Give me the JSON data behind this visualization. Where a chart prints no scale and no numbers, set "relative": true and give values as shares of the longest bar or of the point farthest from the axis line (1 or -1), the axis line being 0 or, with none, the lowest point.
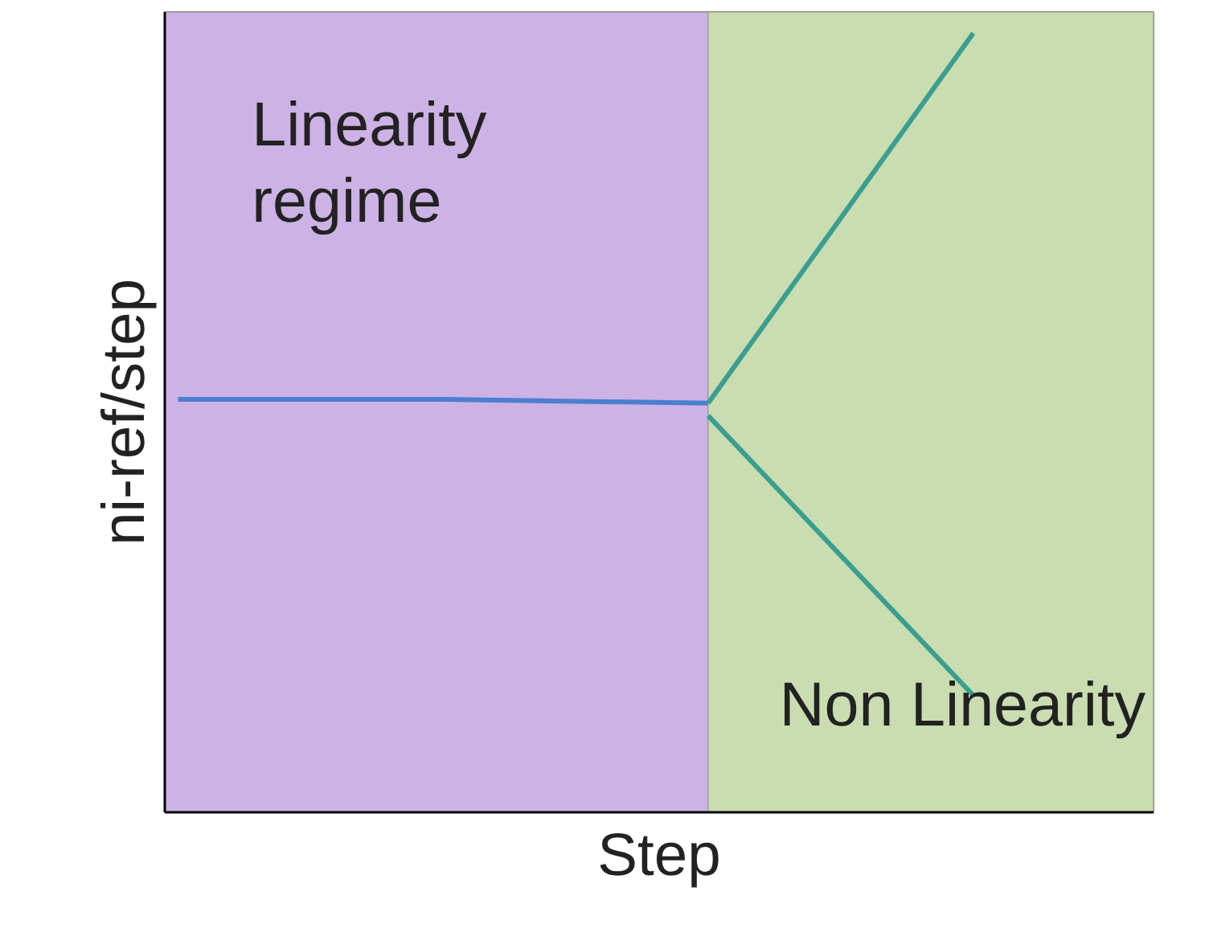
{
  "chart_data": {
    "type": "line",
    "relative": true,
    "xlabel": "Step",
    "ylabel": "ni-ref/step",
    "categories": [
      null,
      null,
      null,
      null
    ],
    "series": [
      {
        "color": "#4a7fd0",
        "values": [
          0.53,
          0.53,
          0.525,
          null
        ]
      },
      {
        "color": "#3a9e90",
        "values": [
          null,
          null,
          0.525,
          1.0
        ]
      },
      {
        "color": "#3a9e90",
        "values": [
          null,
          null,
          0.509,
          0.15
        ]
      }
    ],
    "annotations": [
      "Linearity regime",
      "Non Linearity"
    ]
  }
}
